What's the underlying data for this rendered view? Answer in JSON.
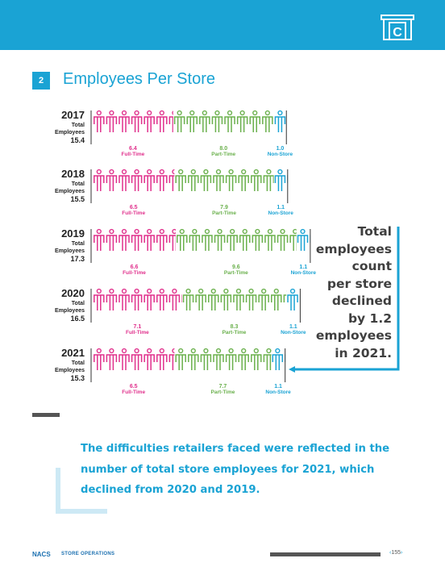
{
  "header": {
    "icon_letter": "C",
    "section_number": "2",
    "title": "Employees Per Store"
  },
  "colors": {
    "accent": "#1aa3d4",
    "full_time": "#e0308c",
    "part_time": "#6ab04c",
    "non_store": "#1aa3d4",
    "text_dark": "#333333"
  },
  "chart_data": {
    "type": "pictograph",
    "total_label": [
      "Total",
      "Employees"
    ],
    "series_labels": [
      "Full-Time",
      "Part-Time",
      "Non-Store"
    ],
    "rows": [
      {
        "year": "2017",
        "total": "15.4",
        "full_time": "6.4",
        "part_time": "8.0",
        "non_store": "1.0"
      },
      {
        "year": "2018",
        "total": "15.5",
        "full_time": "6.5",
        "part_time": "7.9",
        "non_store": "1.1"
      },
      {
        "year": "2019",
        "total": "17.3",
        "full_time": "6.6",
        "part_time": "9.6",
        "non_store": "1.1"
      },
      {
        "year": "2020",
        "total": "16.5",
        "full_time": "7.1",
        "part_time": "8.3",
        "non_store": "1.1"
      },
      {
        "year": "2021",
        "total": "15.3",
        "full_time": "6.5",
        "part_time": "7.7",
        "non_store": "1.1"
      }
    ]
  },
  "callout": {
    "lines": [
      "Total",
      "employees",
      "count",
      "per store",
      "declined",
      "by 1.2",
      "employees",
      "in 2021."
    ]
  },
  "quote": {
    "text": "The difficulties retailers faced were reflected in the number of total store employees for 2021, which declined from 2020 and 2019."
  },
  "footer": {
    "brand": "NACS",
    "section": "STORE OPERATIONS",
    "page": "155"
  }
}
